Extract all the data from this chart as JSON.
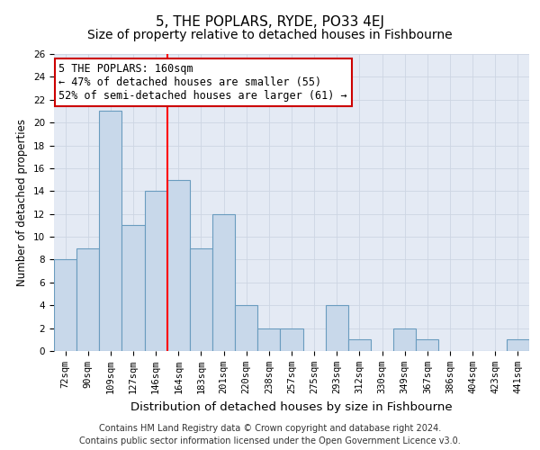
{
  "title": "5, THE POPLARS, RYDE, PO33 4EJ",
  "subtitle": "Size of property relative to detached houses in Fishbourne",
  "xlabel": "Distribution of detached houses by size in Fishbourne",
  "ylabel": "Number of detached properties",
  "categories": [
    "72sqm",
    "90sqm",
    "109sqm",
    "127sqm",
    "146sqm",
    "164sqm",
    "183sqm",
    "201sqm",
    "220sqm",
    "238sqm",
    "257sqm",
    "275sqm",
    "293sqm",
    "312sqm",
    "330sqm",
    "349sqm",
    "367sqm",
    "386sqm",
    "404sqm",
    "423sqm",
    "441sqm"
  ],
  "values": [
    8,
    9,
    21,
    11,
    14,
    15,
    9,
    12,
    4,
    2,
    2,
    0,
    4,
    1,
    0,
    2,
    1,
    0,
    0,
    0,
    1
  ],
  "bar_color": "#c8d8ea",
  "bar_edge_color": "#6a9cbf",
  "annotation_text": "5 THE POPLARS: 160sqm\n← 47% of detached houses are smaller (55)\n52% of semi-detached houses are larger (61) →",
  "annotation_box_facecolor": "#ffffff",
  "annotation_box_edgecolor": "#cc0000",
  "red_line_x": 4.5,
  "ylim": [
    0,
    26
  ],
  "yticks": [
    0,
    2,
    4,
    6,
    8,
    10,
    12,
    14,
    16,
    18,
    20,
    22,
    24,
    26
  ],
  "grid_color": "#cdd5e3",
  "background_color": "#e4eaf4",
  "footer_line1": "Contains HM Land Registry data © Crown copyright and database right 2024.",
  "footer_line2": "Contains public sector information licensed under the Open Government Licence v3.0.",
  "title_fontsize": 11,
  "subtitle_fontsize": 10,
  "xlabel_fontsize": 9.5,
  "ylabel_fontsize": 8.5,
  "tick_fontsize": 7.5,
  "annotation_fontsize": 8.5,
  "footer_fontsize": 7
}
